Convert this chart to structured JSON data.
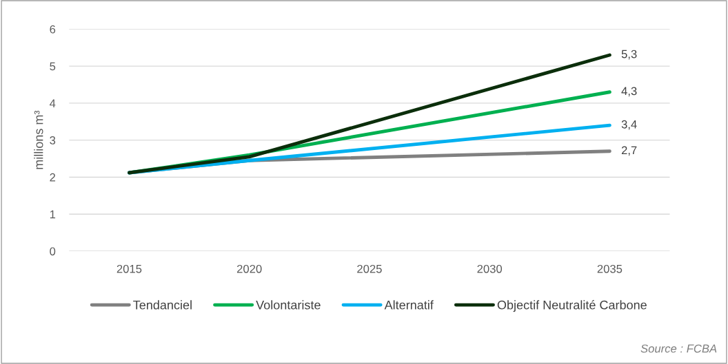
{
  "chart_data": {
    "type": "line",
    "ylabel": "millions m³",
    "x": [
      2015,
      2020,
      2035
    ],
    "series": [
      {
        "name": "Tendanciel",
        "color": "#808080",
        "values": [
          2.12,
          2.45,
          2.7
        ],
        "value_labels": [
          null,
          null,
          "2,7"
        ]
      },
      {
        "name": "Volontariste",
        "color": "#00b050",
        "values": [
          2.12,
          2.6,
          4.3
        ],
        "value_labels": [
          null,
          null,
          "4,3"
        ]
      },
      {
        "name": "Alternatif",
        "color": "#00b0f0",
        "values": [
          2.12,
          2.45,
          3.4
        ],
        "value_labels": [
          null,
          null,
          "3,4"
        ]
      },
      {
        "name": "Objectif Neutralité Carbone",
        "color": "#0b2e0b",
        "values": [
          2.12,
          2.55,
          5.3
        ],
        "value_labels": [
          null,
          null,
          "5,3"
        ]
      }
    ],
    "xlim": [
      2012.5,
      2037.5
    ],
    "xticks": [
      2015,
      2020,
      2025,
      2030,
      2035
    ],
    "ylim": [
      0,
      6
    ],
    "yticks": [
      0,
      1,
      2,
      3,
      4,
      5,
      6
    ],
    "grid": "y",
    "legend": "bottom",
    "marker": "none",
    "line_style": "solid",
    "annotations": [
      "Source : FCBA"
    ]
  }
}
